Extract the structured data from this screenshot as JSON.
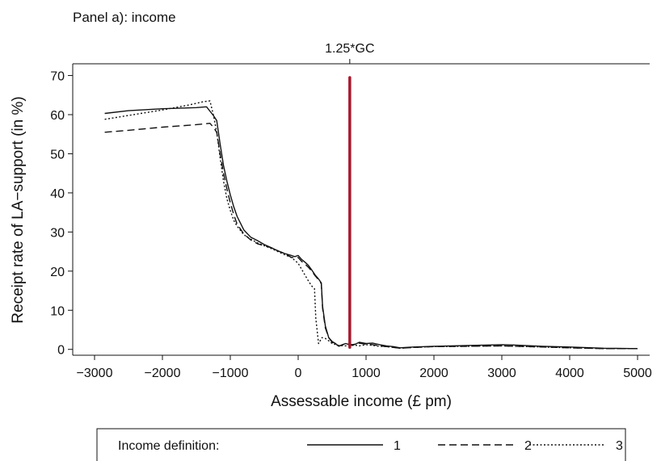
{
  "chart_data": {
    "type": "line",
    "panel_title": "Panel a): income",
    "xlabel": "Assessable income (£ pm)",
    "ylabel": "Receipt rate of LA−support (in %)",
    "xlim": [
      -3000,
      5000
    ],
    "ylim": [
      -1.5,
      73
    ],
    "x_ticks": [
      -3000,
      -2000,
      -1000,
      0,
      1000,
      2000,
      3000,
      4000,
      5000
    ],
    "x_tick_labels": [
      "−3000",
      "−2000",
      "−1000",
      "0",
      "1000",
      "2000",
      "3000",
      "4000",
      "5000"
    ],
    "y_ticks": [
      0,
      10,
      20,
      30,
      40,
      50,
      60,
      70
    ],
    "y_tick_labels": [
      "0",
      "10",
      "20",
      "30",
      "40",
      "50",
      "60",
      "70"
    ],
    "grid": false,
    "reference_line": {
      "x": 760,
      "y_range": [
        0.5,
        69.5
      ],
      "label": "1.25*GC",
      "color": "#a6192e"
    },
    "legend": {
      "title": "Income definition:",
      "position": "bottom",
      "entries": [
        {
          "label": "1",
          "style": "solid"
        },
        {
          "label": "2",
          "style": "dashed"
        },
        {
          "label": "3",
          "style": "dotted"
        }
      ]
    },
    "series": [
      {
        "name": "1",
        "style": "solid",
        "x": [
          -2850,
          -2500,
          -2000,
          -1500,
          -1350,
          -1250,
          -1200,
          -1150,
          -1100,
          -1050,
          -1000,
          -950,
          -900,
          -800,
          -700,
          -600,
          -500,
          -400,
          -300,
          -200,
          -100,
          -50,
          0,
          50,
          100,
          150,
          200,
          250,
          300,
          340,
          360,
          400,
          450,
          500,
          550,
          600,
          650,
          700,
          800,
          900,
          1000,
          1100,
          1200,
          1300,
          1400,
          1500,
          1700,
          2000,
          2500,
          3000,
          3200,
          3600,
          4000,
          4500,
          5000
        ],
        "y": [
          60.3,
          61,
          61.5,
          61.8,
          62,
          59.8,
          58.5,
          52.5,
          47,
          43,
          39.5,
          36.5,
          34,
          30.5,
          28.7,
          27.8,
          26.8,
          26,
          25.2,
          24.5,
          24,
          23.7,
          24,
          23,
          22.3,
          21.5,
          20.3,
          19,
          18,
          17,
          11,
          6,
          3,
          2,
          1.5,
          0.8,
          1.2,
          1.5,
          1,
          1.8,
          1.5,
          1.6,
          1.2,
          0.9,
          0.7,
          0.4,
          0.6,
          0.8,
          1,
          1.2,
          1.1,
          0.8,
          0.6,
          0.3,
          0.2
        ]
      },
      {
        "name": "2",
        "style": "dashed",
        "x": [
          -2850,
          -2500,
          -2000,
          -1600,
          -1400,
          -1300,
          -1250,
          -1200,
          -1150,
          -1100,
          -1050,
          -1000,
          -950,
          -900,
          -800,
          -700,
          -600,
          -500,
          -400,
          -300,
          -200,
          -100,
          0,
          50,
          100,
          150,
          200,
          250,
          300,
          340,
          360,
          400,
          450,
          500,
          550,
          600,
          650,
          700,
          800,
          900,
          1000,
          1100,
          1200,
          1300,
          1400,
          1500,
          1700,
          2000,
          2500,
          3000,
          3200,
          3600,
          4000,
          4500,
          5000
        ],
        "y": [
          55.5,
          56,
          56.8,
          57.3,
          57.6,
          57.8,
          56.8,
          55.5,
          50,
          45,
          41,
          37.5,
          34.5,
          32,
          29.5,
          28,
          27,
          26.5,
          26,
          25.2,
          24.5,
          23.5,
          23.5,
          22.5,
          21.8,
          21,
          20,
          18.8,
          17.8,
          16.8,
          10.5,
          5.5,
          3,
          1.8,
          1.2,
          0.9,
          1.1,
          1.4,
          1.2,
          1.6,
          1.3,
          1.2,
          0.9,
          0.7,
          0.5,
          0.3,
          0.5,
          0.7,
          0.8,
          0.9,
          0.8,
          0.6,
          0.4,
          0.2,
          0.2
        ]
      },
      {
        "name": "3",
        "style": "dotted",
        "x": [
          -2850,
          -2500,
          -2000,
          -1600,
          -1400,
          -1300,
          -1250,
          -1200,
          -1150,
          -1100,
          -1050,
          -1000,
          -950,
          -900,
          -800,
          -700,
          -600,
          -500,
          -400,
          -300,
          -200,
          -100,
          0,
          50,
          100,
          150,
          200,
          240,
          260,
          300,
          350,
          400,
          450,
          500,
          600,
          700,
          800,
          900,
          1000,
          1100,
          1200,
          1300,
          1400,
          1500,
          1700,
          2000,
          2500,
          3000,
          3200,
          3600,
          4000,
          4500,
          5000
        ],
        "y": [
          58.8,
          59.8,
          61.2,
          62.5,
          63.3,
          63.5,
          60,
          55.5,
          49,
          43,
          38.5,
          35.5,
          33,
          31.5,
          29.3,
          28.2,
          27.2,
          26.5,
          25.8,
          25,
          24.2,
          23.5,
          22,
          20.5,
          19,
          17.5,
          16.2,
          15.5,
          8,
          1.5,
          3,
          2.8,
          2.2,
          1.5,
          1,
          0.9,
          1.2,
          0.9,
          1.2,
          1,
          0.8,
          0.7,
          0.5,
          0.3,
          0.5,
          0.7,
          0.8,
          0.9,
          0.8,
          0.6,
          0.4,
          0.2,
          0.2
        ]
      }
    ]
  }
}
